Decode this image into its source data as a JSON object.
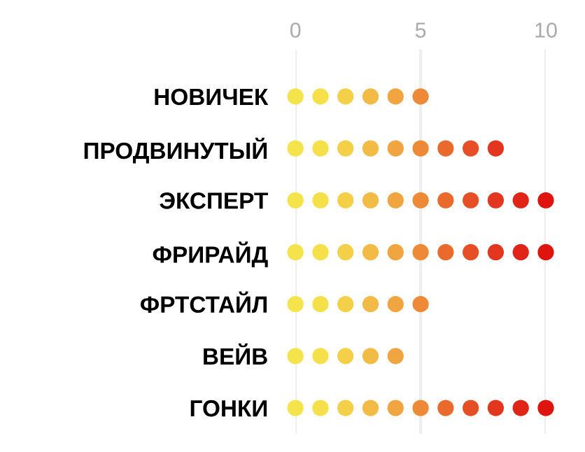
{
  "chart_data": {
    "type": "scatter",
    "orientation": "horizontal",
    "marker": "circle",
    "categories": [
      "НОВИЧЕК",
      "ПРОДВИНУТЫЙ",
      "ЭКСПЕРТ",
      "ФРИРАЙД",
      "ФРТСТАЙЛ",
      "ВЕЙВ",
      "ГОНКИ"
    ],
    "series": [
      {
        "color": "#f5e34c",
        "values": [
          0,
          0,
          0,
          0,
          0,
          0,
          0
        ]
      },
      {
        "color": "#f5e04a",
        "values": [
          1,
          1,
          1,
          1,
          1,
          1,
          1
        ]
      },
      {
        "color": "#f3d048",
        "values": [
          2,
          2,
          2,
          2,
          2,
          2,
          2
        ]
      },
      {
        "color": "#f1bb45",
        "values": [
          3,
          3,
          3,
          3,
          3,
          3,
          3
        ]
      },
      {
        "color": "#f0a540",
        "values": [
          4,
          4,
          4,
          4,
          4,
          4,
          4
        ]
      },
      {
        "color": "#ee8a37",
        "values": [
          5,
          5,
          5,
          5,
          5,
          null,
          5
        ]
      },
      {
        "color": "#ea6a2e",
        "values": [
          null,
          6,
          6,
          6,
          null,
          null,
          6
        ]
      },
      {
        "color": "#e64f26",
        "values": [
          null,
          7,
          7,
          7,
          null,
          null,
          7
        ]
      },
      {
        "color": "#e2361e",
        "values": [
          null,
          8,
          8,
          8,
          null,
          null,
          8
        ]
      },
      {
        "color": "#e02418",
        "values": [
          null,
          null,
          9,
          9,
          null,
          null,
          9
        ]
      },
      {
        "color": "#e0140e",
        "values": [
          null,
          null,
          10,
          10,
          null,
          null,
          10
        ]
      }
    ],
    "xlim": [
      0,
      10
    ],
    "xticks": [
      0,
      5,
      10
    ],
    "grid": "x"
  }
}
